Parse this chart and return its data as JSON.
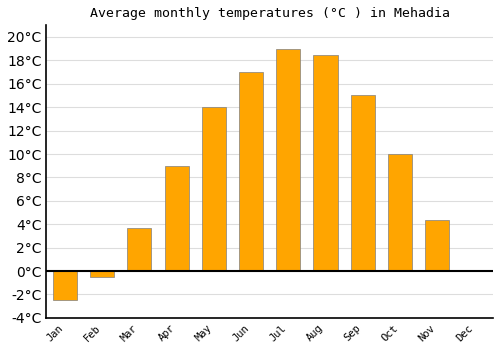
{
  "title": "Average monthly temperatures (°C ) in Mehadia",
  "months": [
    "Jan",
    "Feb",
    "Mar",
    "Apr",
    "May",
    "Jun",
    "Jul",
    "Aug",
    "Sep",
    "Oct",
    "Nov",
    "Dec"
  ],
  "values": [
    -2.5,
    -0.5,
    3.7,
    9.0,
    14.0,
    17.0,
    19.0,
    18.5,
    15.0,
    10.0,
    4.4,
    0.0
  ],
  "bar_color": "#FFA500",
  "bar_edge_color": "#808080",
  "ylim": [
    -4,
    21
  ],
  "yticks": [
    -4,
    -2,
    0,
    2,
    4,
    6,
    8,
    10,
    12,
    14,
    16,
    18,
    20
  ],
  "background_color": "#ffffff",
  "grid_color": "#dddddd",
  "title_fontsize": 9.5,
  "tick_fontsize": 7.5,
  "bar_width": 0.65
}
